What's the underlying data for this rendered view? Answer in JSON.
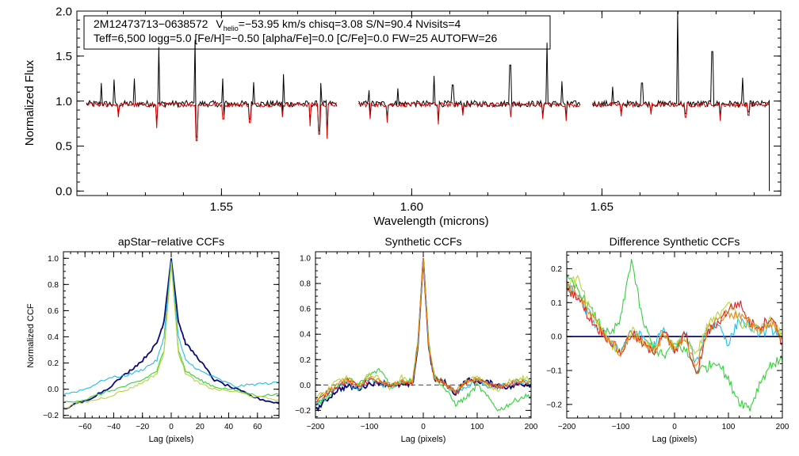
{
  "chart_data": [
    {
      "id": "spectrum",
      "type": "line",
      "title": "",
      "xlabel": "Wavelength (microns)",
      "ylabel": "Normalized Flux",
      "xlim": [
        1.512,
        1.697
      ],
      "ylim": [
        -0.05,
        2.0
      ],
      "xticks": [
        1.55,
        1.6,
        1.65
      ],
      "xtick_labels": [
        "1.55",
        "1.60",
        "1.65"
      ],
      "yticks": [
        0.0,
        0.5,
        1.0,
        1.5,
        2.0
      ],
      "ytick_labels": [
        "0.0",
        "0.5",
        "1.0",
        "1.5",
        "2.0"
      ],
      "segments": [
        [
          1.5145,
          1.5805
        ],
        [
          1.586,
          1.6445
        ],
        [
          1.6475,
          1.694
        ]
      ],
      "emission_lines": [
        [
          1.5185,
          1.2
        ],
        [
          1.5218,
          1.24
        ],
        [
          1.5271,
          1.25
        ],
        [
          1.5335,
          1.6
        ],
        [
          1.543,
          1.68
        ],
        [
          1.5504,
          1.25
        ],
        [
          1.5585,
          1.21
        ],
        [
          1.5663,
          1.3
        ],
        [
          1.576,
          1.2
        ],
        [
          1.5888,
          1.12
        ],
        [
          1.5964,
          1.14
        ],
        [
          1.6059,
          1.28
        ],
        [
          1.6108,
          1.18
        ],
        [
          1.6259,
          1.4
        ],
        [
          1.6355,
          1.65
        ],
        [
          1.6395,
          1.22
        ],
        [
          1.6529,
          1.16
        ],
        [
          1.6605,
          1.2
        ],
        [
          1.67,
          2.0
        ],
        [
          1.679,
          1.55
        ],
        [
          1.687,
          1.26
        ]
      ],
      "absorption_lines": [
        [
          1.5228,
          0.82
        ],
        [
          1.533,
          0.7
        ],
        [
          1.5435,
          0.56
        ],
        [
          1.5505,
          0.8
        ],
        [
          1.5575,
          0.76
        ],
        [
          1.566,
          0.82
        ],
        [
          1.5733,
          0.72
        ],
        [
          1.5757,
          0.63
        ],
        [
          1.5777,
          0.58
        ],
        [
          1.589,
          0.8
        ],
        [
          1.5935,
          0.76
        ],
        [
          1.607,
          0.74
        ],
        [
          1.6135,
          0.84
        ],
        [
          1.626,
          0.82
        ],
        [
          1.6345,
          0.8
        ],
        [
          1.6405,
          0.78
        ],
        [
          1.655,
          0.83
        ],
        [
          1.663,
          0.85
        ],
        [
          1.672,
          0.82
        ],
        [
          1.681,
          0.78
        ],
        [
          1.6885,
          0.84
        ]
      ],
      "deep_drop": [
        1.694,
        0.0
      ],
      "series": [
        {
          "name": "observed",
          "color": "#000000",
          "level": 0.97
        },
        {
          "name": "model",
          "color": "#d40000",
          "level": 0.96
        }
      ],
      "annotation_box": {
        "line1_star": "2M12473713−0638572",
        "line1_v": "V",
        "line1_v_sub": "helio",
        "line1_rest": "=−53.95 km/s  chisq=3.08  S/N=90.4  Nvisits=4",
        "line2": "Teff=6,500 logg=5.0 [Fe/H]=−0.50 [alpha/Fe]=0.0 [C/Fe]=0.0 FW=25 AUTOFW=26"
      }
    },
    {
      "id": "ccf1",
      "type": "line",
      "title": "apStar−relative CCFs",
      "xlabel": "Lag (pixels)",
      "ylabel": "Normalized CCF",
      "xlim": [
        -75,
        75
      ],
      "ylim": [
        -0.22,
        1.05
      ],
      "xticks": [
        -60,
        -40,
        -20,
        0,
        20,
        40,
        60
      ],
      "xtick_labels": [
        "−60",
        "−40",
        "−20",
        "0",
        "20",
        "40",
        "60"
      ],
      "yticks": [
        -0.2,
        0.0,
        0.2,
        0.4,
        0.6,
        0.8,
        1.0
      ],
      "ytick_labels": [
        "−0.2",
        "0.0",
        "0.2",
        "0.4",
        "0.6",
        "0.8",
        "1.0"
      ],
      "series": [
        {
          "name": "navy",
          "color": "#0a0a7a",
          "x": [
            -75,
            -60,
            -45,
            -30,
            -20,
            -10,
            -5,
            0,
            5,
            10,
            20,
            30,
            45,
            60,
            75
          ],
          "y": [
            -0.15,
            -0.09,
            0.0,
            0.13,
            0.22,
            0.35,
            0.52,
            1.0,
            0.52,
            0.35,
            0.22,
            0.07,
            0.0,
            -0.07,
            -0.11
          ]
        },
        {
          "name": "cyan",
          "color": "#1fbfe8",
          "x": [
            -75,
            -60,
            -45,
            -30,
            -20,
            -10,
            -5,
            0,
            5,
            10,
            20,
            30,
            45,
            60,
            75
          ],
          "y": [
            -0.04,
            0.0,
            0.08,
            0.11,
            0.15,
            0.22,
            0.4,
            0.98,
            0.4,
            0.22,
            0.14,
            0.09,
            0.02,
            0.04,
            0.05
          ]
        },
        {
          "name": "green",
          "color": "#33d23c",
          "x": [
            -75,
            -60,
            -45,
            -30,
            -20,
            -10,
            -5,
            0,
            5,
            10,
            20,
            30,
            45,
            60,
            75
          ],
          "y": [
            -0.1,
            -0.08,
            -0.02,
            0.03,
            0.07,
            0.14,
            0.3,
            0.97,
            0.3,
            0.14,
            0.07,
            0.02,
            -0.01,
            -0.05,
            -0.04
          ]
        },
        {
          "name": "yellow-green",
          "color": "#b8d43a",
          "x": [
            -75,
            -60,
            -45,
            -30,
            -20,
            -10,
            -5,
            0,
            5,
            10,
            20,
            30,
            45,
            60,
            75
          ],
          "y": [
            -0.14,
            -0.1,
            -0.06,
            0.0,
            0.05,
            0.12,
            0.28,
            0.96,
            0.28,
            0.12,
            0.04,
            0.0,
            -0.02,
            -0.06,
            -0.08
          ]
        }
      ]
    },
    {
      "id": "ccf2",
      "type": "line",
      "title": "Synthetic CCFs",
      "xlabel": "Lag (pixels)",
      "ylabel": "",
      "xlim": [
        -200,
        200
      ],
      "ylim": [
        -0.26,
        1.05
      ],
      "xticks": [
        -200,
        -100,
        0,
        100,
        200
      ],
      "xtick_labels": [
        "−200",
        "−100",
        "0",
        "100",
        "200"
      ],
      "yticks": [
        -0.2,
        0.0,
        0.2,
        0.4,
        0.6,
        0.8,
        1.0
      ],
      "ytick_labels": [
        "−0.2",
        "0.0",
        "0.2",
        "0.4",
        "0.6",
        "0.8",
        "1.0"
      ],
      "zero_line": 0.0,
      "series": [
        {
          "name": "navy",
          "color": "#0a0a7a",
          "x": [
            -200,
            -180,
            -160,
            -140,
            -120,
            -100,
            -80,
            -60,
            -40,
            -20,
            -10,
            0,
            10,
            20,
            40,
            60,
            80,
            100,
            120,
            140,
            160,
            180,
            200
          ],
          "y": [
            -0.2,
            -0.12,
            -0.04,
            -0.01,
            -0.03,
            0.01,
            0.02,
            0.0,
            0.0,
            0.0,
            0.3,
            1.0,
            0.3,
            0.05,
            0.02,
            -0.07,
            0.04,
            0.03,
            0.02,
            0.0,
            -0.02,
            0.01,
            0.0
          ]
        },
        {
          "name": "cyan",
          "color": "#1fbfe8",
          "x": [
            -200,
            -180,
            -160,
            -140,
            -120,
            -100,
            -80,
            -60,
            -40,
            -20,
            -10,
            0,
            10,
            20,
            40,
            60,
            80,
            100,
            120,
            140,
            160,
            180,
            200
          ],
          "y": [
            -0.15,
            -0.08,
            -0.02,
            0.02,
            -0.04,
            0.05,
            0.01,
            -0.02,
            0.03,
            0.02,
            0.32,
            1.0,
            0.32,
            0.06,
            0.0,
            -0.05,
            -0.02,
            0.05,
            -0.01,
            -0.02,
            0.01,
            0.03,
            0.02
          ]
        },
        {
          "name": "green",
          "color": "#33d23c",
          "x": [
            -200,
            -180,
            -160,
            -140,
            -120,
            -100,
            -80,
            -60,
            -40,
            -20,
            -10,
            0,
            10,
            20,
            40,
            60,
            80,
            100,
            120,
            140,
            160,
            180,
            200
          ],
          "y": [
            -0.16,
            -0.1,
            -0.01,
            0.05,
            0.0,
            0.08,
            0.12,
            0.0,
            0.02,
            0.04,
            0.35,
            1.0,
            0.35,
            0.08,
            -0.03,
            -0.15,
            -0.1,
            0.0,
            -0.1,
            -0.2,
            -0.15,
            -0.1,
            -0.08
          ]
        },
        {
          "name": "yellow-green",
          "color": "#b8d43a",
          "x": [
            -200,
            -180,
            -160,
            -140,
            -120,
            -100,
            -80,
            -60,
            -40,
            -20,
            -10,
            0,
            10,
            20,
            40,
            60,
            80,
            100,
            120,
            140,
            160,
            180,
            200
          ],
          "y": [
            -0.1,
            -0.05,
            0.03,
            0.06,
            -0.02,
            0.09,
            0.05,
            -0.03,
            0.06,
            0.03,
            0.33,
            1.0,
            0.33,
            0.07,
            0.01,
            -0.07,
            0.03,
            0.06,
            0.0,
            -0.05,
            0.03,
            0.06,
            0.05
          ]
        },
        {
          "name": "red",
          "color": "#dd2020",
          "x": [
            -200,
            -180,
            -160,
            -140,
            -120,
            -100,
            -80,
            -60,
            -40,
            -20,
            -10,
            0,
            10,
            20,
            40,
            60,
            80,
            100,
            120,
            140,
            160,
            180,
            200
          ],
          "y": [
            -0.14,
            -0.07,
            -0.01,
            0.03,
            -0.01,
            0.04,
            0.02,
            -0.02,
            0.02,
            0.01,
            0.31,
            1.0,
            0.31,
            0.06,
            0.01,
            -0.06,
            0.02,
            0.04,
            0.01,
            -0.02,
            0.0,
            0.02,
            0.01
          ]
        },
        {
          "name": "orange",
          "color": "#e88a1a",
          "x": [
            -200,
            -180,
            -160,
            -140,
            -120,
            -100,
            -80,
            -60,
            -40,
            -20,
            -10,
            0,
            10,
            20,
            40,
            60,
            80,
            100,
            120,
            140,
            160,
            180,
            200
          ],
          "y": [
            -0.12,
            -0.06,
            0.0,
            0.04,
            -0.01,
            0.05,
            0.03,
            -0.01,
            0.03,
            0.02,
            0.31,
            1.0,
            0.31,
            0.06,
            0.01,
            -0.05,
            0.02,
            0.05,
            0.01,
            -0.01,
            0.02,
            0.03,
            0.02
          ]
        }
      ]
    },
    {
      "id": "ccf3",
      "type": "line",
      "title": "Difference Synthetic CCFs",
      "xlabel": "Lag (pixels)",
      "ylabel": "",
      "xlim": [
        -200,
        200
      ],
      "ylim": [
        -0.24,
        0.25
      ],
      "xticks": [
        -200,
        -100,
        0,
        100,
        200
      ],
      "xtick_labels": [
        "−200",
        "−100",
        "0",
        "100",
        "200"
      ],
      "yticks": [
        -0.2,
        -0.1,
        0.0,
        0.1,
        0.2
      ],
      "ytick_labels": [
        "−0.2",
        "−0.1",
        "0.0",
        "0.1",
        "0.2"
      ],
      "zero_line": 0.0,
      "series": [
        {
          "name": "navy",
          "color": "#0a0a7a",
          "x": [
            -200,
            200
          ],
          "y": [
            0.0,
            0.0
          ]
        },
        {
          "name": "cyan",
          "color": "#1fbfe8",
          "x": [
            -200,
            -180,
            -160,
            -140,
            -120,
            -100,
            -80,
            -60,
            -40,
            -20,
            0,
            20,
            40,
            60,
            80,
            100,
            120,
            140,
            160,
            180,
            200
          ],
          "y": [
            0.15,
            0.12,
            0.07,
            0.02,
            -0.01,
            -0.04,
            0.01,
            0.0,
            -0.03,
            0.02,
            -0.04,
            0.01,
            -0.08,
            0.02,
            0.04,
            -0.02,
            0.05,
            0.03,
            0.01,
            0.02,
            0.01
          ]
        },
        {
          "name": "green",
          "color": "#33d23c",
          "x": [
            -200,
            -180,
            -160,
            -140,
            -120,
            -100,
            -80,
            -60,
            -40,
            -20,
            0,
            20,
            40,
            60,
            80,
            100,
            120,
            140,
            160,
            180,
            200
          ],
          "y": [
            0.17,
            0.14,
            0.09,
            0.04,
            0.0,
            0.05,
            0.23,
            0.05,
            -0.03,
            -0.06,
            -0.02,
            -0.04,
            -0.1,
            -0.09,
            -0.07,
            -0.13,
            -0.19,
            -0.21,
            -0.13,
            -0.08,
            -0.07
          ]
        },
        {
          "name": "yellow-green",
          "color": "#b8d43a",
          "x": [
            -200,
            -180,
            -160,
            -140,
            -120,
            -100,
            -80,
            -60,
            -40,
            -20,
            0,
            20,
            40,
            60,
            80,
            100,
            120,
            140,
            160,
            180,
            200
          ],
          "y": [
            0.16,
            0.17,
            0.09,
            0.03,
            -0.02,
            -0.05,
            0.02,
            -0.01,
            -0.04,
            0.01,
            -0.03,
            0.0,
            -0.06,
            0.03,
            0.06,
            0.11,
            0.04,
            0.03,
            0.02,
            0.05,
            0.0
          ]
        },
        {
          "name": "red",
          "color": "#dd2020",
          "x": [
            -200,
            -180,
            -160,
            -140,
            -120,
            -100,
            -80,
            -60,
            -40,
            -20,
            0,
            20,
            40,
            60,
            80,
            100,
            120,
            140,
            160,
            180,
            200
          ],
          "y": [
            0.14,
            0.12,
            0.06,
            0.02,
            -0.01,
            -0.05,
            0.01,
            -0.02,
            -0.05,
            0.02,
            -0.05,
            0.01,
            -0.12,
            0.01,
            0.04,
            0.08,
            0.1,
            0.04,
            0.03,
            0.06,
            -0.02
          ]
        },
        {
          "name": "orange",
          "color": "#e88a1a",
          "x": [
            -200,
            -180,
            -160,
            -140,
            -120,
            -100,
            -80,
            -60,
            -40,
            -20,
            0,
            20,
            40,
            60,
            80,
            100,
            120,
            140,
            160,
            180,
            200
          ],
          "y": [
            0.15,
            0.13,
            0.07,
            0.03,
            -0.01,
            -0.05,
            0.01,
            -0.01,
            -0.05,
            0.01,
            -0.04,
            0.0,
            -0.1,
            0.02,
            0.05,
            0.07,
            0.06,
            0.04,
            0.02,
            0.04,
            0.0
          ]
        }
      ]
    }
  ]
}
